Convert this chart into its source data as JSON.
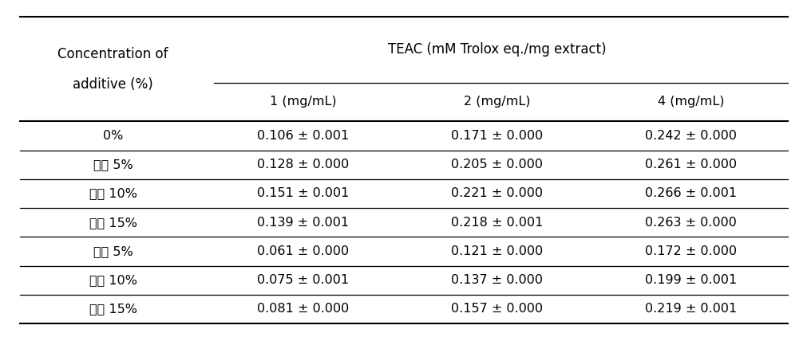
{
  "col_header_main": "TEAC（mM Trolox eq./mg extract）",
  "col_header_sub": [
    "1（mg/mL）",
    "2（mg/mL）",
    "4（mg/mL）"
  ],
  "row_header_label_line1": "Concentration of",
  "row_header_label_line2": "additive（%）",
  "rows": [
    {
      "label": "0%",
      "c1": "0.106 ± 0.001",
      "c2": "0.171 ± 0.000",
      "c3": "0.242 ± 0.000"
    },
    {
      "label": "쌌거 5%",
      "c1": "0.128 ± 0.000",
      "c2": "0.205 ± 0.000",
      "c3": "0.261 ± 0.000"
    },
    {
      "label": "쌌거 10%",
      "c1": "0.151 ± 0.001",
      "c2": "0.221 ± 0.000",
      "c3": "0.266 ± 0.001"
    },
    {
      "label": "쌌거 15%",
      "c1": "0.139 ± 0.001",
      "c2": "0.218 ± 0.001",
      "c3": "0.263 ± 0.000"
    },
    {
      "label": "현미 5%",
      "c1": "0.061 ± 0.000",
      "c2": "0.121 ± 0.000",
      "c3": "0.172 ± 0.000"
    },
    {
      "label": "현미 10%",
      "c1": "0.075 ± 0.001",
      "c2": "0.137 ± 0.000",
      "c3": "0.199 ± 0.001"
    },
    {
      "label": "현미 15%",
      "c1": "0.081 ± 0.000",
      "c2": "0.157 ± 0.000",
      "c3": "0.219 ± 0.001"
    }
  ],
  "col_header_main_ascii": "TEAC (mM Trolox eq./mg extract)",
  "col_header_sub_ascii": [
    "1 (mg/mL)",
    "2 (mg/mL)",
    "4 (mg/mL)"
  ],
  "row_header_label_line2_ascii": "additive (%)",
  "bg_color": "#ffffff",
  "text_color": "#000000",
  "font_size": 11.5,
  "header_font_size": 12
}
